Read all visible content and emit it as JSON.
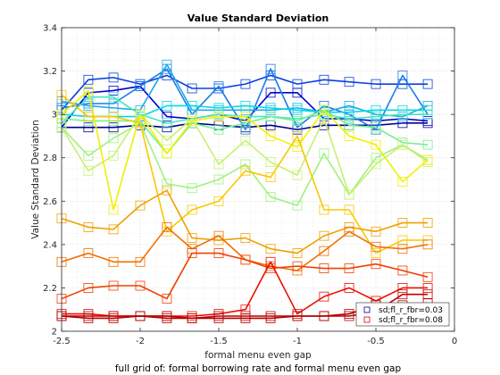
{
  "chart_data": {
    "type": "line",
    "title": "Value Standard Deviation",
    "xlabel": "formal menu even gap",
    "ylabel": "Value Standard Deviation",
    "caption": "full grid of: formal borrowing rate and formal menu even gap",
    "xlim": [
      -2.5,
      0
    ],
    "ylim": [
      2,
      3.4
    ],
    "xticks": [
      -2.5,
      -2,
      -1.5,
      -1,
      -0.5,
      0
    ],
    "xtick_labels": [
      "-2.5",
      "-2",
      "-1.5",
      "-1",
      "-0.5",
      "0"
    ],
    "yticks": [
      2,
      2.2,
      2.4,
      2.6,
      2.8,
      3,
      3.2,
      3.4
    ],
    "ytick_labels": [
      "2",
      "2.2",
      "2.4",
      "2.6",
      "2.8",
      "3",
      "3.2",
      "3.4"
    ],
    "grid": true,
    "legend_position": "bottom-right",
    "legend": [
      {
        "label": "sd;fl_r_fbr=0.03",
        "color": "#0000a0"
      },
      {
        "label": "sd;fl_r_fbr=0.08",
        "color": "#d90000"
      }
    ],
    "x": [
      -2.5,
      -2.33,
      -2.17,
      -2.0,
      -1.83,
      -1.67,
      -1.5,
      -1.33,
      -1.17,
      -1.0,
      -0.83,
      -0.67,
      -0.5,
      -0.33,
      -0.17
    ],
    "series": [
      {
        "color": "#00008b",
        "values": [
          2.94,
          2.94,
          2.94,
          2.95,
          2.94,
          2.96,
          2.95,
          2.94,
          2.95,
          2.93,
          2.95,
          2.95,
          2.95,
          2.96,
          2.96
        ]
      },
      {
        "color": "#0000d0",
        "values": [
          2.94,
          3.1,
          3.11,
          3.13,
          2.99,
          2.98,
          3.0,
          2.97,
          3.1,
          3.1,
          2.98,
          2.98,
          2.97,
          2.98,
          2.97
        ]
      },
      {
        "color": "#0a40e0",
        "values": [
          3.02,
          3.16,
          3.17,
          3.14,
          3.18,
          3.12,
          3.12,
          3.14,
          3.18,
          3.14,
          3.16,
          3.15,
          3.14,
          3.14,
          3.14
        ]
      },
      {
        "color": "#1b7be8",
        "values": [
          3.03,
          3.05,
          3.05,
          3.13,
          3.21,
          3.0,
          3.13,
          2.93,
          3.21,
          2.94,
          3.04,
          3.0,
          2.93,
          3.18,
          3.0
        ]
      },
      {
        "color": "#20a8e8",
        "values": [
          3.06,
          3.04,
          3.03,
          3.02,
          3.23,
          3.02,
          3.02,
          3.02,
          3.02,
          3.03,
          3.01,
          3.04,
          3.0,
          2.99,
          3.04
        ]
      },
      {
        "color": "#00d8e8",
        "values": [
          3.0,
          2.99,
          2.99,
          2.99,
          3.04,
          3.04,
          3.03,
          3.04,
          3.03,
          3.02,
          3.01,
          3.01,
          3.02,
          3.02,
          3.02
        ]
      },
      {
        "color": "#40e8c0",
        "values": [
          2.96,
          3.08,
          3.08,
          3.0,
          2.96,
          2.98,
          3.0,
          2.99,
          2.99,
          2.98,
          3.0,
          2.98,
          2.99,
          3.0,
          3.0
        ]
      },
      {
        "color": "#70f090",
        "values": [
          2.98,
          2.97,
          2.97,
          2.97,
          2.82,
          2.96,
          2.93,
          2.96,
          2.99,
          2.97,
          3.02,
          2.95,
          2.94,
          2.87,
          2.86
        ]
      },
      {
        "color": "#a0f080",
        "values": [
          2.94,
          2.81,
          2.89,
          2.96,
          2.68,
          2.66,
          2.7,
          2.77,
          2.62,
          2.58,
          2.82,
          2.63,
          2.8,
          2.86,
          2.79
        ]
      },
      {
        "color": "#c8f070",
        "values": [
          2.94,
          2.74,
          2.81,
          3.0,
          2.88,
          2.98,
          2.77,
          2.88,
          2.78,
          2.72,
          2.98,
          2.63,
          2.77,
          2.86,
          2.78
        ]
      },
      {
        "color": "#f0f000",
        "values": [
          3.0,
          3.11,
          2.56,
          3.0,
          2.82,
          2.97,
          2.99,
          2.99,
          2.9,
          2.85,
          3.02,
          2.9,
          2.86,
          2.69,
          2.79
        ]
      },
      {
        "color": "#f8c800",
        "values": [
          3.09,
          2.99,
          2.99,
          2.96,
          2.46,
          2.56,
          2.6,
          2.74,
          2.71,
          2.9,
          2.56,
          2.56,
          2.36,
          2.42,
          2.42
        ]
      },
      {
        "color": "#f0a000",
        "values": [
          2.52,
          2.48,
          2.47,
          2.58,
          2.65,
          2.43,
          2.42,
          2.43,
          2.38,
          2.36,
          2.44,
          2.48,
          2.46,
          2.5,
          2.5
        ]
      },
      {
        "color": "#f07000",
        "values": [
          2.32,
          2.36,
          2.32,
          2.32,
          2.48,
          2.38,
          2.44,
          2.33,
          2.3,
          2.28,
          2.37,
          2.46,
          2.39,
          2.38,
          2.4
        ]
      },
      {
        "color": "#f04000",
        "values": [
          2.15,
          2.2,
          2.21,
          2.21,
          2.15,
          2.36,
          2.36,
          2.33,
          2.29,
          2.3,
          2.29,
          2.29,
          2.31,
          2.28,
          2.25
        ]
      },
      {
        "color": "#e81000",
        "values": [
          2.08,
          2.08,
          2.07,
          2.07,
          2.07,
          2.07,
          2.08,
          2.1,
          2.32,
          2.08,
          2.16,
          2.2,
          2.14,
          2.2,
          2.2
        ]
      },
      {
        "color": "#c00000",
        "values": [
          2.07,
          2.07,
          2.07,
          2.07,
          2.07,
          2.06,
          2.07,
          2.07,
          2.07,
          2.07,
          2.07,
          2.07,
          2.09,
          2.17,
          2.17
        ]
      },
      {
        "color": "#b00000",
        "values": [
          2.07,
          2.06,
          2.06,
          2.07,
          2.06,
          2.06,
          2.06,
          2.06,
          2.06,
          2.07,
          2.07,
          2.08,
          2.12,
          2.12,
          2.13
        ]
      }
    ]
  }
}
